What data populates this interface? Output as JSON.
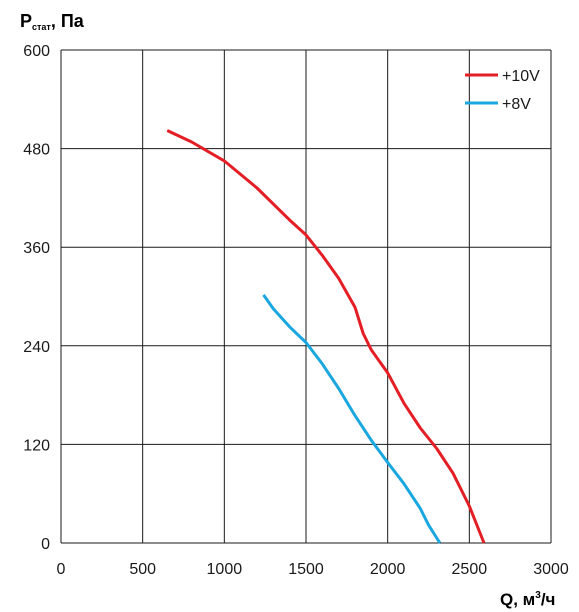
{
  "chart_data": {
    "type": "line",
    "ylabel": {
      "main": "P",
      "sub": "стат",
      "suffix": ", Па"
    },
    "xlabel": {
      "main": "Q, м",
      "sup": "3",
      "suffix": "/ч"
    },
    "xlim": [
      0,
      3000
    ],
    "ylim": [
      0,
      600
    ],
    "xticks": [
      "0",
      "500",
      "1000",
      "1500",
      "2000",
      "2500",
      "3000"
    ],
    "yticks": [
      "0",
      "120",
      "240",
      "360",
      "480",
      "600"
    ],
    "grid": true,
    "legend_position": "top-right",
    "series": [
      {
        "name": "+10V",
        "color": "#e31e24",
        "points": [
          [
            650,
            502
          ],
          [
            800,
            488
          ],
          [
            1000,
            465
          ],
          [
            1200,
            432
          ],
          [
            1400,
            393
          ],
          [
            1500,
            375
          ],
          [
            1600,
            350
          ],
          [
            1700,
            322
          ],
          [
            1800,
            287
          ],
          [
            1850,
            255
          ],
          [
            1900,
            235
          ],
          [
            2000,
            207
          ],
          [
            2100,
            170
          ],
          [
            2200,
            140
          ],
          [
            2300,
            115
          ],
          [
            2400,
            85
          ],
          [
            2500,
            45
          ],
          [
            2590,
            0
          ]
        ]
      },
      {
        "name": "+8V",
        "color": "#1aa7e0",
        "points": [
          [
            1240,
            302
          ],
          [
            1300,
            285
          ],
          [
            1400,
            263
          ],
          [
            1500,
            244
          ],
          [
            1600,
            218
          ],
          [
            1700,
            188
          ],
          [
            1800,
            155
          ],
          [
            1900,
            125
          ],
          [
            2000,
            98
          ],
          [
            2100,
            72
          ],
          [
            2200,
            42
          ],
          [
            2250,
            22
          ],
          [
            2320,
            0
          ]
        ]
      }
    ]
  }
}
